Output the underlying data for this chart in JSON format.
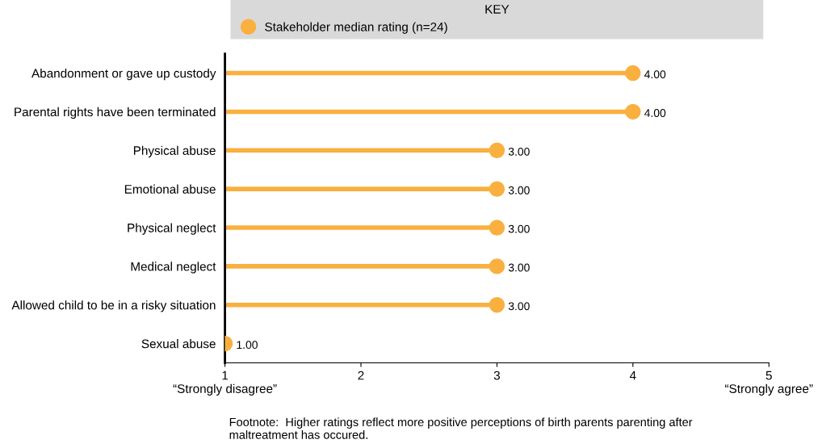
{
  "chart_data": {
    "type": "lollipop",
    "orientation": "horizontal",
    "categories": [
      "Abandonment or gave up custody",
      "Parental rights have been terminated",
      "Physical abuse",
      "Emotional abuse",
      "Physical neglect",
      "Medical neglect",
      "Allowed child to be in a risky situation",
      "Sexual abuse"
    ],
    "series": [
      {
        "name": "Stakeholder median rating (n=24)",
        "color": "#f9b03f",
        "values": [
          4,
          4,
          3,
          3,
          3,
          3,
          3,
          1
        ],
        "value_labels": [
          "4.00",
          "4.00",
          "3.00",
          "3.00",
          "3.00",
          "3.00",
          "3.00",
          "1.00"
        ]
      }
    ],
    "xlim": [
      1,
      5
    ],
    "xticks": [
      {
        "value": 1,
        "label": "1\n“Strongly disagree”"
      },
      2,
      3,
      4,
      {
        "value": 5,
        "label": "5\n“Strongly agree”"
      }
    ],
    "legend": "top",
    "legend_title": "KEY",
    "grid": false,
    "marker": "circle",
    "annotations": [
      "Footnote:  Higher ratings reflect more positive perceptions of birth parents parenting after\nmaltreatment has occured."
    ]
  }
}
